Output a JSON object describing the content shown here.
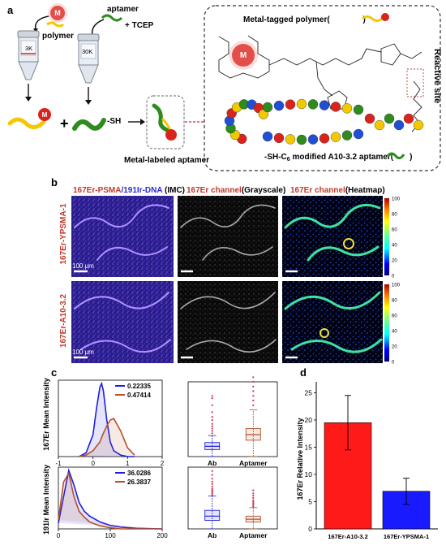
{
  "colors": {
    "polymer_yellow": "#f3c800",
    "aptamer_green": "#2e8b1e",
    "metal_red": "#d9241d",
    "er_red": "#c0392b",
    "ir_blue": "#2a2ad6",
    "blue_series": "#1f1fe0",
    "brown_series": "#b5512a",
    "bar_red": "#ff1a1a",
    "bar_blue": "#1a1aff"
  },
  "panel_a": {
    "letter": "a",
    "metal_symbol": "M",
    "polymer_label": "polymer",
    "aptamer_label": "aptamer",
    "tcep_label": "+ TCEP",
    "tube_left_label": "3K",
    "tube_right_label": "30K",
    "plus_sign": "+",
    "sh_label": "-SH",
    "product_label": "Metal-labeled aptamer",
    "box_title_prefix": "Metal-tagged polymer(",
    "box_title_suffix": " )",
    "reactive_site": "Reactive site",
    "aptamer_caption_prefix": "-SH-C",
    "aptamer_caption_sub": "6",
    "aptamer_caption_suffix": " modified A10-3.2 aptamer(",
    "aptamer_caption_end": ")"
  },
  "panel_b": {
    "letter": "b",
    "col1_title_a": "167Er-PSMA",
    "col1_title_b": "/191Ir-DNA",
    "col1_title_c": " (IMC)",
    "col2_title_a": "167Er channel",
    "col2_title_b": "(Grayscale)",
    "col3_title_a": "167Er channel",
    "col3_title_b": "(Heatmap)",
    "row1_label": "167Er-YPSMA-1",
    "row2_label": "167Er-A10-3.2",
    "scale_bar_text": "100 μm",
    "colorbar_ticks": [
      "100",
      "80",
      "60",
      "40",
      "20",
      "0"
    ]
  },
  "panel_c": {
    "letter": "c",
    "top_ylabel": "167Er Mean Intensity",
    "bottom_ylabel": "191Ir Mean Intensity",
    "box_categories": [
      "Ab",
      "Aptamer"
    ]
  },
  "panel_d": {
    "letter": "d",
    "ylabel": "167Er Relative Intensity"
  },
  "chart_data": [
    {
      "type": "line",
      "panel": "c-top-density",
      "x": [
        -0.4,
        -0.2,
        0.0,
        0.1,
        0.2,
        0.25,
        0.3,
        0.4,
        0.5,
        0.6,
        0.8,
        1.0,
        1.2
      ],
      "series": [
        {
          "name": "0.22335",
          "values": [
            0.0,
            0.05,
            0.3,
            0.65,
            0.95,
            1.0,
            0.9,
            0.5,
            0.2,
            0.08,
            0.02,
            0.0,
            0.0
          ]
        },
        {
          "name": "0.47414",
          "values": [
            0.0,
            0.02,
            0.08,
            0.14,
            0.2,
            0.26,
            0.32,
            0.42,
            0.5,
            0.52,
            0.35,
            0.12,
            0.02
          ]
        }
      ],
      "xlim": [
        -1,
        2
      ],
      "xticks": [
        -1,
        0,
        1,
        2
      ],
      "legend": "top-right"
    },
    {
      "type": "line",
      "panel": "c-bottom-density",
      "x": [
        0,
        10,
        20,
        30,
        40,
        50,
        60,
        80,
        100,
        120,
        150,
        200
      ],
      "series": [
        {
          "name": "36.0286",
          "values": [
            0.1,
            0.55,
            1.0,
            0.75,
            0.45,
            0.3,
            0.22,
            0.12,
            0.06,
            0.03,
            0.01,
            0.0
          ]
        },
        {
          "name": "26.3837",
          "values": [
            0.15,
            0.8,
            0.95,
            0.55,
            0.3,
            0.2,
            0.12,
            0.05,
            0.02,
            0.0,
            0.0,
            0.0
          ]
        }
      ],
      "xlim": [
        0,
        200
      ],
      "xticks": [
        0,
        100,
        200
      ],
      "legend": "top-right"
    },
    {
      "type": "box",
      "panel": "c-top-box",
      "categories": [
        "Ab",
        "Aptamer"
      ],
      "boxes": [
        {
          "min": 0.0,
          "q1": 0.15,
          "median": 0.22,
          "q3": 0.3,
          "max": 0.45
        },
        {
          "min": 0.0,
          "q1": 0.35,
          "median": 0.47,
          "q3": 0.6,
          "max": 1.0
        }
      ],
      "outliers": [
        [
          0.5,
          0.55,
          0.6,
          0.65,
          0.7,
          0.78,
          0.85,
          0.95,
          1.1,
          1.25,
          1.3
        ],
        [
          1.1,
          1.2,
          1.3,
          1.4,
          1.5,
          1.6,
          1.7
        ]
      ],
      "ylim": [
        0.0,
        1.6
      ],
      "yticks": [
        0.0,
        0.5,
        1.0,
        1.5
      ]
    },
    {
      "type": "box",
      "panel": "c-bottom-box",
      "categories": [
        "Ab",
        "Aptamer"
      ],
      "boxes": [
        {
          "min": 0,
          "q1": 22,
          "median": 33,
          "q3": 48,
          "max": 85
        },
        {
          "min": 0,
          "q1": 18,
          "median": 25,
          "q3": 33,
          "max": 55
        }
      ],
      "outliers": [
        [
          88,
          92,
          96,
          100,
          104,
          110,
          116,
          122,
          130,
          140,
          150
        ],
        [
          58,
          62,
          66,
          70,
          74,
          80,
          86,
          92,
          100
        ]
      ],
      "ylim": [
        0,
        160
      ],
      "yticks": [
        0,
        50,
        100,
        150
      ]
    },
    {
      "type": "bar",
      "panel": "d",
      "categories": [
        "167Er-A10-3.2",
        "167Er-YPSMA-1"
      ],
      "values": [
        19.5,
        6.9
      ],
      "errors": [
        5.0,
        2.4
      ],
      "ylim": [
        0,
        27
      ],
      "yticks": [
        0,
        5,
        10,
        15,
        20,
        25
      ]
    }
  ]
}
